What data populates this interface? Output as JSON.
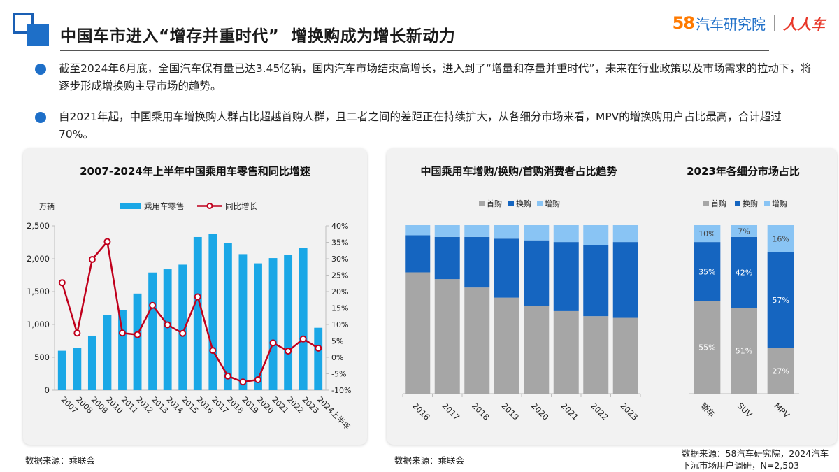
{
  "header": {
    "title": "中国车市进入“增存并重时代”  增换购成为增长新动力",
    "logo_num": "58",
    "logo_name": "汽车研究院",
    "logo_partner": "人人车"
  },
  "bullets": [
    {
      "text": "截至2024年6月底，全国汽车保有量已达3.45亿辆，国内汽车市场结束高增长，进入到了“增量和存量并重时代”，未来在行业政策以及市场需求的拉动下，将逐步形成增换购主导市场的趋势。"
    },
    {
      "text": "自2021年起，中国乘用车增换购人群占比超越首购人群，且二者之间的差距正在持续扩大，从各细分市场来看，MPV的增换购用户占比最高，合计超过70%。"
    }
  ],
  "colors": {
    "bar_blue": "#1aa7e6",
    "line_red": "#c0001c",
    "first": "#a6a6a6",
    "replace": "#1565c0",
    "add": "#89c4f4"
  },
  "chart_data": [
    {
      "type": "bar",
      "title": "2007-2024年上半年中国乘用车零售和同比增速",
      "unit_label": "万辆",
      "categories": [
        "2007",
        "2008",
        "2009",
        "2010",
        "2011",
        "2012",
        "2013",
        "2014",
        "2015",
        "2016",
        "2017",
        "2018",
        "2019",
        "2020",
        "2021",
        "2022",
        "2023",
        "2024上半年"
      ],
      "series": [
        {
          "name": "乘用车零售",
          "type": "bar",
          "axis": "left",
          "values": [
            600,
            640,
            830,
            1140,
            1220,
            1470,
            1790,
            1840,
            1910,
            2330,
            2380,
            2240,
            2070,
            1930,
            2010,
            2060,
            2170,
            950
          ]
        },
        {
          "name": "同比增长",
          "type": "line",
          "axis": "right",
          "values": [
            22.7,
            7.4,
            29.8,
            35.2,
            7.4,
            6.9,
            15.8,
            9.9,
            7.3,
            18.4,
            2.1,
            -5.7,
            -7.5,
            -6.8,
            4.4,
            1.9,
            5.6,
            2.8
          ]
        }
      ],
      "y_left": {
        "lim": [
          0,
          2500
        ],
        "ticks": [
          "0",
          "500",
          "1,000",
          "1,500",
          "2,000",
          "2,500"
        ]
      },
      "y_right": {
        "lim": [
          -10,
          40
        ],
        "ticks": [
          "-10%",
          "-5%",
          "0%",
          "5%",
          "10%",
          "15%",
          "20%",
          "25%",
          "30%",
          "35%",
          "40%"
        ]
      },
      "legend_position": "top",
      "grid": false,
      "source": "数据来源：乘联会"
    },
    {
      "type": "bar",
      "stacked": true,
      "title": "中国乘用车增购/换购/首购消费者占比趋势",
      "categories": [
        "2016",
        "2017",
        "2018",
        "2019",
        "2020",
        "2021",
        "2022",
        "2023"
      ],
      "series": [
        {
          "name": "首购",
          "values": [
            72,
            68,
            63,
            57,
            52,
            49,
            46,
            45
          ]
        },
        {
          "name": "换购",
          "values": [
            22,
            25,
            30,
            35,
            39,
            41,
            42,
            45
          ]
        },
        {
          "name": "增购",
          "values": [
            6,
            7,
            7,
            8,
            9,
            10,
            12,
            10
          ]
        }
      ],
      "ylim": [
        0,
        100
      ],
      "legend_position": "top",
      "source": "数据来源：乘联会"
    },
    {
      "type": "bar",
      "stacked": true,
      "title": "2023年各细分市场占比",
      "categories": [
        "轿车",
        "SUV",
        "MPV"
      ],
      "series": [
        {
          "name": "首购",
          "values": [
            55,
            51,
            27
          ],
          "labels": [
            "55%",
            "51%",
            "27%"
          ]
        },
        {
          "name": "换购",
          "values": [
            35,
            42,
            57
          ],
          "labels": [
            "35%",
            "42%",
            "57%"
          ]
        },
        {
          "name": "增购",
          "values": [
            10,
            7,
            16
          ],
          "labels": [
            "10%",
            "7%",
            "16%"
          ]
        }
      ],
      "ylim": [
        0,
        100
      ],
      "legend_position": "top",
      "source": "数据来源：58汽车研究院，2024汽车下沉市场用户调研，N=2,503"
    }
  ],
  "footer": {
    "source_1": "数据来源：乘联会",
    "source_2": "数据来源：乘联会",
    "source_3_line1": "数据来源：58汽车研究院，2024汽车",
    "source_3_line2": "下沉市场用户调研，N=2,503"
  }
}
